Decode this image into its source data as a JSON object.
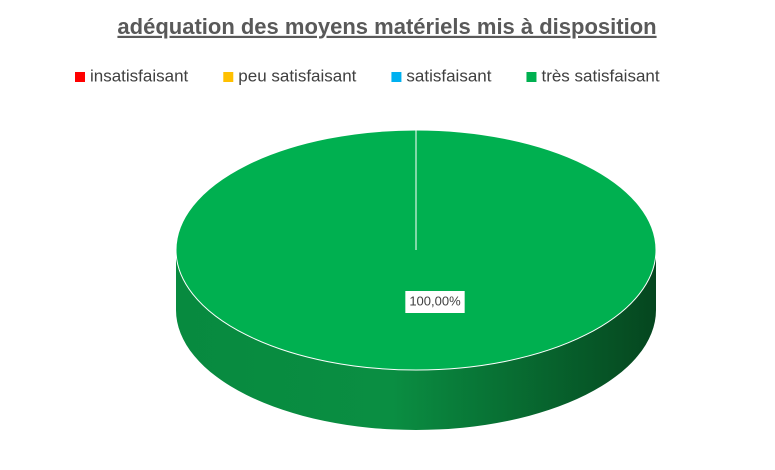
{
  "chart_data": {
    "type": "pie",
    "title": "adéquation des moyens matériels mis à disposition",
    "categories": [
      "insatisfaisant",
      "peu satisfaisant",
      "satisfaisant",
      "très satisfaisant"
    ],
    "values": [
      0,
      0,
      0,
      100
    ],
    "value_labels": [
      null,
      null,
      null,
      "100,00%"
    ],
    "colors": [
      "#ff0000",
      "#ffc000",
      "#00b0f0",
      "#00b050"
    ],
    "legend": "top",
    "three_d": true
  }
}
